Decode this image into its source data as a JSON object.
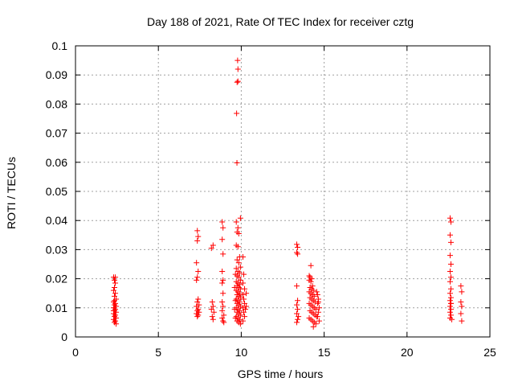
{
  "chart_data": {
    "type": "scatter",
    "title": "Day 188 of 2021, Rate Of TEC Index for receiver cztg",
    "xlabel": "GPS time / hours",
    "ylabel": "ROTI / TECUs",
    "xlim": [
      0,
      25
    ],
    "ylim": [
      0,
      0.1
    ],
    "x_ticks": [
      0,
      5,
      10,
      15,
      20,
      25
    ],
    "y_ticks": [
      0,
      0.01,
      0.02,
      0.03,
      0.04,
      0.05,
      0.06,
      0.07,
      0.08,
      0.09,
      0.1
    ],
    "x_tick_labels": [
      "0",
      "5",
      "10",
      "15",
      "20",
      "25"
    ],
    "y_tick_labels": [
      "0",
      "0.01",
      "0.02",
      "0.03",
      "0.04",
      "0.05",
      "0.06",
      "0.07",
      "0.08",
      "0.09",
      "0.1"
    ],
    "grid": true,
    "marker": "plus",
    "marker_color": "#ff0000",
    "series": [
      {
        "name": "ROTI",
        "points": [
          [
            2.3,
            0.0205
          ],
          [
            2.35,
            0.0195
          ],
          [
            2.4,
            0.0185
          ],
          [
            2.35,
            0.017
          ],
          [
            2.3,
            0.016
          ],
          [
            2.4,
            0.015
          ],
          [
            2.35,
            0.014
          ],
          [
            2.45,
            0.013
          ],
          [
            2.3,
            0.012
          ],
          [
            2.4,
            0.0115
          ],
          [
            2.35,
            0.011
          ],
          [
            2.45,
            0.0105
          ],
          [
            2.3,
            0.01
          ],
          [
            2.4,
            0.0095
          ],
          [
            2.35,
            0.009
          ],
          [
            2.45,
            0.0085
          ],
          [
            2.3,
            0.008
          ],
          [
            2.4,
            0.0075
          ],
          [
            2.35,
            0.007
          ],
          [
            2.45,
            0.0065
          ],
          [
            2.3,
            0.006
          ],
          [
            2.4,
            0.0055
          ],
          [
            2.35,
            0.005
          ],
          [
            2.45,
            0.0045
          ],
          [
            2.4,
            0.0205
          ],
          [
            2.35,
            0.0125
          ],
          [
            2.3,
            0.009
          ],
          [
            7.35,
            0.0365
          ],
          [
            7.4,
            0.0345
          ],
          [
            7.35,
            0.033
          ],
          [
            7.3,
            0.0255
          ],
          [
            7.4,
            0.0225
          ],
          [
            7.35,
            0.0205
          ],
          [
            7.3,
            0.0195
          ],
          [
            7.4,
            0.013
          ],
          [
            7.35,
            0.012
          ],
          [
            7.45,
            0.011
          ],
          [
            7.3,
            0.0105
          ],
          [
            7.4,
            0.0095
          ],
          [
            7.35,
            0.009
          ],
          [
            7.45,
            0.0085
          ],
          [
            7.3,
            0.008
          ],
          [
            7.4,
            0.0075
          ],
          [
            7.35,
            0.007
          ],
          [
            8.2,
            0.0305
          ],
          [
            8.3,
            0.0315
          ],
          [
            8.25,
            0.012
          ],
          [
            8.3,
            0.0105
          ],
          [
            8.2,
            0.0095
          ],
          [
            8.35,
            0.0085
          ],
          [
            8.25,
            0.007
          ],
          [
            8.3,
            0.006
          ],
          [
            8.85,
            0.0395
          ],
          [
            8.9,
            0.0375
          ],
          [
            8.85,
            0.0335
          ],
          [
            8.9,
            0.0285
          ],
          [
            8.85,
            0.0225
          ],
          [
            8.9,
            0.0195
          ],
          [
            8.85,
            0.0185
          ],
          [
            8.9,
            0.015
          ],
          [
            8.85,
            0.012
          ],
          [
            8.9,
            0.0105
          ],
          [
            8.85,
            0.009
          ],
          [
            8.95,
            0.0075
          ],
          [
            8.85,
            0.0065
          ],
          [
            8.9,
            0.0055
          ],
          [
            8.95,
            0.005
          ],
          [
            9.78,
            0.095
          ],
          [
            9.8,
            0.092
          ],
          [
            9.75,
            0.0875
          ],
          [
            9.8,
            0.0878
          ],
          [
            9.72,
            0.0768
          ],
          [
            9.74,
            0.0598
          ],
          [
            9.7,
            0.0395
          ],
          [
            9.8,
            0.0375
          ],
          [
            9.75,
            0.036
          ],
          [
            9.85,
            0.0355
          ],
          [
            9.95,
            0.0408
          ],
          [
            9.7,
            0.0315
          ],
          [
            9.8,
            0.031
          ],
          [
            9.9,
            0.0275
          ],
          [
            9.75,
            0.0265
          ],
          [
            9.85,
            0.0255
          ],
          [
            9.95,
            0.024
          ],
          [
            9.7,
            0.0235
          ],
          [
            9.8,
            0.0225
          ],
          [
            9.9,
            0.022
          ],
          [
            9.75,
            0.021
          ],
          [
            9.85,
            0.0205
          ],
          [
            9.95,
            0.0195
          ],
          [
            9.7,
            0.019
          ],
          [
            9.8,
            0.0185
          ],
          [
            9.9,
            0.018
          ],
          [
            9.75,
            0.0175
          ],
          [
            9.85,
            0.017
          ],
          [
            9.95,
            0.0165
          ],
          [
            9.7,
            0.016
          ],
          [
            9.8,
            0.0155
          ],
          [
            9.9,
            0.015
          ],
          [
            9.75,
            0.0145
          ],
          [
            9.85,
            0.014
          ],
          [
            9.95,
            0.0135
          ],
          [
            9.7,
            0.013
          ],
          [
            9.8,
            0.0125
          ],
          [
            9.9,
            0.012
          ],
          [
            9.75,
            0.0115
          ],
          [
            9.85,
            0.011
          ],
          [
            9.95,
            0.0105
          ],
          [
            9.7,
            0.01
          ],
          [
            9.8,
            0.0095
          ],
          [
            9.9,
            0.009
          ],
          [
            9.75,
            0.0085
          ],
          [
            9.85,
            0.008
          ],
          [
            9.95,
            0.0075
          ],
          [
            9.7,
            0.007
          ],
          [
            9.8,
            0.0065
          ],
          [
            9.9,
            0.006
          ],
          [
            9.75,
            0.0055
          ],
          [
            9.85,
            0.005
          ],
          [
            9.95,
            0.0045
          ],
          [
            9.65,
            0.0215
          ],
          [
            9.6,
            0.017
          ],
          [
            9.65,
            0.0125
          ],
          [
            9.6,
            0.0095
          ],
          [
            9.65,
            0.0065
          ],
          [
            10.1,
            0.0275
          ],
          [
            10.15,
            0.0215
          ],
          [
            10.1,
            0.0185
          ],
          [
            10.2,
            0.0165
          ],
          [
            10.1,
            0.0145
          ],
          [
            10.15,
            0.013
          ],
          [
            10.2,
            0.0115
          ],
          [
            10.1,
            0.01
          ],
          [
            10.15,
            0.0085
          ],
          [
            10.2,
            0.007
          ],
          [
            10.1,
            0.0055
          ],
          [
            10.3,
            0.015
          ],
          [
            10.3,
            0.0105
          ],
          [
            10.25,
            0.0095
          ],
          [
            13.35,
            0.0318
          ],
          [
            13.4,
            0.0308
          ],
          [
            13.35,
            0.029
          ],
          [
            13.4,
            0.0285
          ],
          [
            13.35,
            0.0175
          ],
          [
            13.4,
            0.0125
          ],
          [
            13.35,
            0.011
          ],
          [
            13.4,
            0.0095
          ],
          [
            13.35,
            0.008
          ],
          [
            13.45,
            0.007
          ],
          [
            13.4,
            0.006
          ],
          [
            13.35,
            0.005
          ],
          [
            14.2,
            0.0245
          ],
          [
            14.1,
            0.021
          ],
          [
            14.15,
            0.0205
          ],
          [
            14.25,
            0.02
          ],
          [
            14.1,
            0.0195
          ],
          [
            14.2,
            0.019
          ],
          [
            14.3,
            0.0175
          ],
          [
            14.15,
            0.017
          ],
          [
            14.25,
            0.0165
          ],
          [
            14.35,
            0.016
          ],
          [
            14.1,
            0.0155
          ],
          [
            14.2,
            0.015
          ],
          [
            14.3,
            0.0145
          ],
          [
            14.4,
            0.014
          ],
          [
            14.15,
            0.0135
          ],
          [
            14.25,
            0.013
          ],
          [
            14.35,
            0.0125
          ],
          [
            14.45,
            0.012
          ],
          [
            14.1,
            0.0115
          ],
          [
            14.2,
            0.011
          ],
          [
            14.3,
            0.0105
          ],
          [
            14.4,
            0.01
          ],
          [
            14.5,
            0.0095
          ],
          [
            14.15,
            0.009
          ],
          [
            14.25,
            0.0085
          ],
          [
            14.35,
            0.008
          ],
          [
            14.45,
            0.0075
          ],
          [
            14.55,
            0.007
          ],
          [
            14.1,
            0.0065
          ],
          [
            14.2,
            0.006
          ],
          [
            14.3,
            0.0055
          ],
          [
            14.4,
            0.005
          ],
          [
            14.5,
            0.0045
          ],
          [
            14.35,
            0.0035
          ],
          [
            14.6,
            0.0145
          ],
          [
            14.65,
            0.013
          ],
          [
            14.6,
            0.0115
          ],
          [
            14.7,
            0.01
          ],
          [
            14.65,
            0.0085
          ],
          [
            14.6,
            0.007
          ],
          [
            14.7,
            0.0055
          ],
          [
            14.65,
            0.012
          ],
          [
            14.55,
            0.0155
          ],
          [
            22.6,
            0.0408
          ],
          [
            22.65,
            0.0395
          ],
          [
            22.6,
            0.035
          ],
          [
            22.65,
            0.0325
          ],
          [
            22.6,
            0.028
          ],
          [
            22.65,
            0.025
          ],
          [
            22.6,
            0.0225
          ],
          [
            22.65,
            0.0205
          ],
          [
            22.6,
            0.019
          ],
          [
            22.65,
            0.0165
          ],
          [
            22.6,
            0.015
          ],
          [
            22.65,
            0.0135
          ],
          [
            22.6,
            0.0125
          ],
          [
            22.65,
            0.0115
          ],
          [
            22.6,
            0.0105
          ],
          [
            22.65,
            0.0095
          ],
          [
            22.6,
            0.0085
          ],
          [
            22.65,
            0.0075
          ],
          [
            22.6,
            0.0065
          ],
          [
            22.7,
            0.006
          ],
          [
            22.65,
            0.0115
          ],
          [
            23.25,
            0.0175
          ],
          [
            23.3,
            0.0155
          ],
          [
            23.25,
            0.012
          ],
          [
            23.3,
            0.0105
          ],
          [
            23.25,
            0.008
          ],
          [
            23.3,
            0.0055
          ]
        ]
      }
    ]
  }
}
